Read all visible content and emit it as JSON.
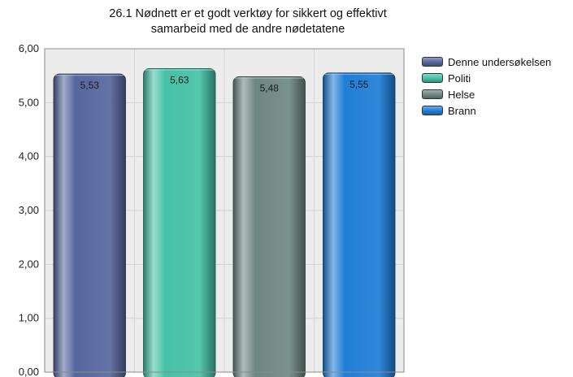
{
  "chart_data": {
    "type": "bar",
    "title_lines": [
      "26.1 Nødnett er et godt verktøy for sikkert og effektivt",
      "samarbeid med de andre nødetatene"
    ],
    "categories": [
      "Denne undersøkelsen",
      "Politi",
      "Helse",
      "Brann"
    ],
    "values": [
      5.53,
      5.63,
      5.48,
      5.55
    ],
    "value_labels": [
      "5,53",
      "5,63",
      "5,48",
      "5,55"
    ],
    "colors": [
      "#56679e",
      "#45c1a6",
      "#6f8782",
      "#1f7ed6"
    ],
    "ylim": [
      0,
      6
    ],
    "yticks": [
      0,
      1,
      2,
      3,
      4,
      5,
      6
    ],
    "ytick_labels": [
      "0,00",
      "1,00",
      "2,00",
      "3,00",
      "4,00",
      "5,00",
      "6,00"
    ],
    "grid": true,
    "legend_position": "right",
    "xlabel": "",
    "ylabel": ""
  }
}
